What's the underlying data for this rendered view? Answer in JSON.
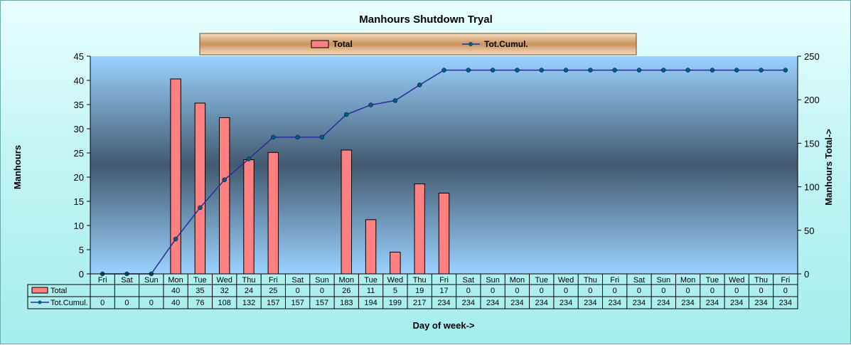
{
  "chart_data": {
    "type": "bar",
    "title": "Manhours Shutdown Tryal",
    "xlabel": "Day of week->",
    "ylabel": "Manhours",
    "y2label": "Manhours Total->",
    "ylim": [
      0,
      45
    ],
    "y_ticks": [
      0,
      5,
      10,
      15,
      20,
      25,
      30,
      35,
      40,
      45
    ],
    "y2lim": [
      0,
      250
    ],
    "y2_ticks": [
      0,
      50,
      100,
      150,
      200,
      250
    ],
    "grid": false,
    "legend_position": "top",
    "categories": [
      "Fri",
      "Sat",
      "Sun",
      "Mon",
      "Tue",
      "Wed",
      "Thu",
      "Fri",
      "Sat",
      "Sun",
      "Mon",
      "Tue",
      "Wed",
      "Thu",
      "Fri",
      "Sat",
      "Sun",
      "Mon",
      "Tue",
      "Wed",
      "Thu",
      "Fri",
      "Sat",
      "Sun",
      "Mon",
      "Tue",
      "Wed",
      "Thu",
      "Fri"
    ],
    "series": [
      {
        "name": "Total",
        "type": "bar",
        "axis": "left",
        "color": "#ff8080",
        "values": [
          null,
          null,
          null,
          40.3,
          35.3,
          32.3,
          23.6,
          25.1,
          null,
          null,
          25.6,
          11.2,
          4.5,
          18.6,
          16.7,
          null,
          null,
          null,
          null,
          null,
          null,
          null,
          null,
          null,
          null,
          null,
          null,
          null,
          null
        ],
        "table_values": [
          "",
          "",
          "",
          "40",
          "35",
          "32",
          "24",
          "25",
          "0",
          "0",
          "26",
          "11",
          "5",
          "19",
          "17",
          "0",
          "0",
          "0",
          "0",
          "0",
          "0",
          "0",
          "0",
          "0",
          "0",
          "0",
          "0",
          "0",
          "0"
        ]
      },
      {
        "name": "Tot.Cumul.",
        "type": "line",
        "axis": "right",
        "color": "#2a2a9a",
        "marker_color": "#00607a",
        "values": [
          0,
          0,
          0,
          40,
          76,
          108,
          132,
          157,
          157,
          157,
          183,
          194,
          199,
          217,
          234,
          234,
          234,
          234,
          234,
          234,
          234,
          234,
          234,
          234,
          234,
          234,
          234,
          234,
          234
        ],
        "table_values": [
          "0",
          "0",
          "0",
          "40",
          "76",
          "108",
          "132",
          "157",
          "157",
          "157",
          "183",
          "194",
          "199",
          "217",
          "234",
          "234",
          "234",
          "234",
          "234",
          "234",
          "234",
          "234",
          "234",
          "234",
          "234",
          "234",
          "234",
          "234",
          "234"
        ]
      }
    ]
  },
  "colors": {
    "plot_top": "#9ad2ff",
    "plot_mid": "#425a70",
    "plot_bottom": "#9ad2ff",
    "legend_top": "#f8dcc0",
    "legend_mid": "#c8925c",
    "legend_border": "#6b4a2b"
  }
}
